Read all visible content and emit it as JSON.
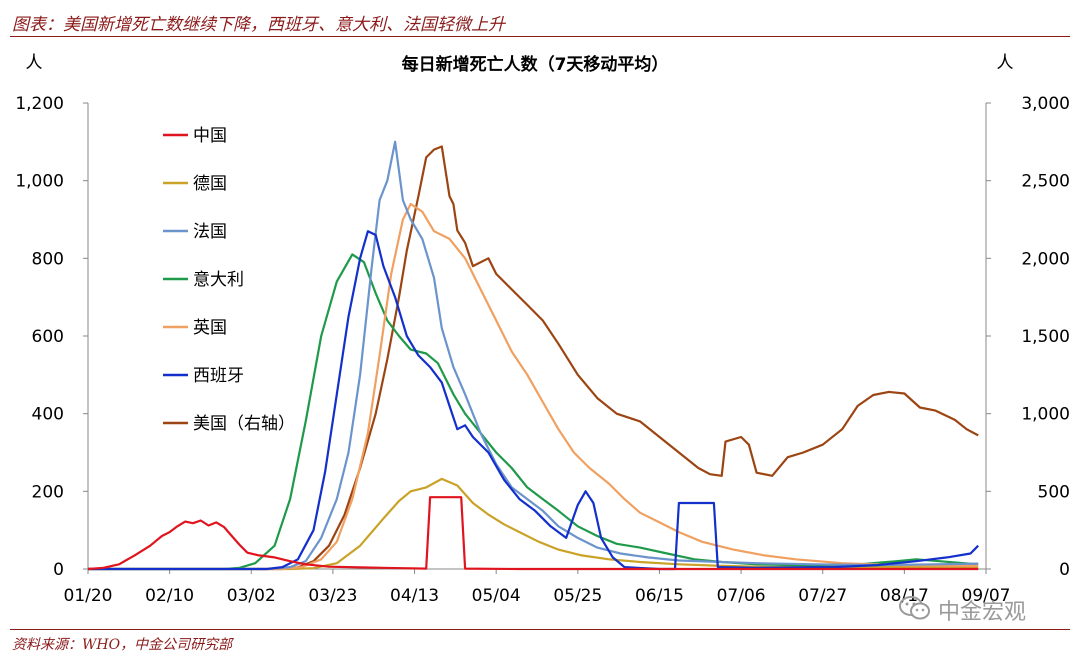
{
  "header": {
    "title": "图表：美国新增死亡数继续下降，西班牙、意大利、法国轻微上升"
  },
  "footer": {
    "source": "资料来源：WHO，中金公司研究部"
  },
  "watermark": {
    "text": "中金宏观",
    "icon": "wechat-icon"
  },
  "chart_data": {
    "type": "line",
    "title": "每日新增死亡人数（7天移动平均）",
    "ylabel_left": "人",
    "ylabel_right": "人",
    "ylim_left": [
      0,
      1200
    ],
    "ylim_right": [
      0,
      3000
    ],
    "yticks_left": [
      "0",
      "200",
      "400",
      "600",
      "800",
      "1,000",
      "1,200"
    ],
    "yticks_right": [
      "0",
      "500",
      "1,000",
      "1,500",
      "2,000",
      "2,500",
      "3,000"
    ],
    "x_start": "2020-01-20",
    "x_end": "2020-09-07",
    "xtick_labels": [
      "01/20",
      "02/10",
      "03/02",
      "03/23",
      "04/13",
      "05/04",
      "05/25",
      "06/15",
      "07/06",
      "07/27",
      "08/17",
      "09/07"
    ],
    "grid": false,
    "legend_position": "upper-left",
    "series": [
      {
        "name": "中国",
        "axis": "left",
        "color": "#e0141e",
        "points": [
          [
            "2020-01-20",
            0
          ],
          [
            "2020-01-24",
            3
          ],
          [
            "2020-01-28",
            12
          ],
          [
            "2020-02-01",
            35
          ],
          [
            "2020-02-05",
            60
          ],
          [
            "2020-02-08",
            85
          ],
          [
            "2020-02-10",
            95
          ],
          [
            "2020-02-12",
            110
          ],
          [
            "2020-02-14",
            122
          ],
          [
            "2020-02-16",
            118
          ],
          [
            "2020-02-18",
            125
          ],
          [
            "2020-02-20",
            112
          ],
          [
            "2020-02-22",
            120
          ],
          [
            "2020-02-24",
            108
          ],
          [
            "2020-02-26",
            85
          ],
          [
            "2020-02-28",
            62
          ],
          [
            "2020-03-01",
            42
          ],
          [
            "2020-03-04",
            35
          ],
          [
            "2020-03-08",
            30
          ],
          [
            "2020-03-12",
            20
          ],
          [
            "2020-03-16",
            12
          ],
          [
            "2020-03-22",
            6
          ],
          [
            "2020-03-30",
            4
          ],
          [
            "2020-04-10",
            2
          ],
          [
            "2020-04-16",
            1
          ],
          [
            "2020-04-17",
            185
          ],
          [
            "2020-04-25",
            185
          ],
          [
            "2020-04-26",
            1
          ],
          [
            "2020-05-10",
            0
          ],
          [
            "2020-09-05",
            0
          ]
        ]
      },
      {
        "name": "德国",
        "axis": "left",
        "color": "#c9a227",
        "points": [
          [
            "2020-01-20",
            0
          ],
          [
            "2020-03-12",
            0
          ],
          [
            "2020-03-18",
            2
          ],
          [
            "2020-03-24",
            15
          ],
          [
            "2020-03-30",
            60
          ],
          [
            "2020-04-05",
            130
          ],
          [
            "2020-04-09",
            175
          ],
          [
            "2020-04-12",
            200
          ],
          [
            "2020-04-16",
            210
          ],
          [
            "2020-04-20",
            232
          ],
          [
            "2020-04-24",
            215
          ],
          [
            "2020-04-28",
            170
          ],
          [
            "2020-05-02",
            140
          ],
          [
            "2020-05-06",
            115
          ],
          [
            "2020-05-10",
            95
          ],
          [
            "2020-05-15",
            70
          ],
          [
            "2020-05-20",
            50
          ],
          [
            "2020-05-26",
            35
          ],
          [
            "2020-06-02",
            25
          ],
          [
            "2020-06-10",
            18
          ],
          [
            "2020-06-20",
            12
          ],
          [
            "2020-07-01",
            8
          ],
          [
            "2020-07-15",
            5
          ],
          [
            "2020-08-01",
            5
          ],
          [
            "2020-08-15",
            5
          ],
          [
            "2020-09-05",
            4
          ]
        ]
      },
      {
        "name": "法国",
        "axis": "left",
        "color": "#6b93cc",
        "points": [
          [
            "2020-01-20",
            0
          ],
          [
            "2020-03-06",
            0
          ],
          [
            "2020-03-12",
            5
          ],
          [
            "2020-03-16",
            20
          ],
          [
            "2020-03-20",
            80
          ],
          [
            "2020-03-24",
            180
          ],
          [
            "2020-03-27",
            300
          ],
          [
            "2020-03-30",
            500
          ],
          [
            "2020-04-02",
            780
          ],
          [
            "2020-04-04",
            950
          ],
          [
            "2020-04-06",
            1000
          ],
          [
            "2020-04-08",
            1100
          ],
          [
            "2020-04-10",
            950
          ],
          [
            "2020-04-12",
            900
          ],
          [
            "2020-04-15",
            850
          ],
          [
            "2020-04-18",
            750
          ],
          [
            "2020-04-20",
            620
          ],
          [
            "2020-04-23",
            520
          ],
          [
            "2020-04-26",
            450
          ],
          [
            "2020-04-30",
            350
          ],
          [
            "2020-05-04",
            270
          ],
          [
            "2020-05-08",
            210
          ],
          [
            "2020-05-12",
            180
          ],
          [
            "2020-05-16",
            150
          ],
          [
            "2020-05-20",
            110
          ],
          [
            "2020-05-25",
            80
          ],
          [
            "2020-05-30",
            55
          ],
          [
            "2020-06-05",
            40
          ],
          [
            "2020-06-12",
            30
          ],
          [
            "2020-06-20",
            22
          ],
          [
            "2020-07-01",
            18
          ],
          [
            "2020-07-10",
            15
          ],
          [
            "2020-07-25",
            12
          ],
          [
            "2020-08-10",
            10
          ],
          [
            "2020-08-25",
            12
          ],
          [
            "2020-09-05",
            14
          ]
        ]
      },
      {
        "name": "意大利",
        "axis": "left",
        "color": "#1f9a4a",
        "points": [
          [
            "2020-01-20",
            0
          ],
          [
            "2020-02-24",
            0
          ],
          [
            "2020-02-28",
            3
          ],
          [
            "2020-03-03",
            15
          ],
          [
            "2020-03-08",
            60
          ],
          [
            "2020-03-12",
            180
          ],
          [
            "2020-03-16",
            380
          ],
          [
            "2020-03-20",
            600
          ],
          [
            "2020-03-24",
            740
          ],
          [
            "2020-03-28",
            810
          ],
          [
            "2020-03-31",
            790
          ],
          [
            "2020-04-03",
            710
          ],
          [
            "2020-04-06",
            640
          ],
          [
            "2020-04-09",
            600
          ],
          [
            "2020-04-12",
            565
          ],
          [
            "2020-04-16",
            555
          ],
          [
            "2020-04-19",
            530
          ],
          [
            "2020-04-23",
            450
          ],
          [
            "2020-04-26",
            400
          ],
          [
            "2020-04-30",
            350
          ],
          [
            "2020-05-04",
            300
          ],
          [
            "2020-05-08",
            260
          ],
          [
            "2020-05-12",
            210
          ],
          [
            "2020-05-16",
            180
          ],
          [
            "2020-05-20",
            150
          ],
          [
            "2020-05-25",
            110
          ],
          [
            "2020-05-30",
            85
          ],
          [
            "2020-06-04",
            65
          ],
          [
            "2020-06-10",
            55
          ],
          [
            "2020-06-17",
            40
          ],
          [
            "2020-06-24",
            25
          ],
          [
            "2020-07-01",
            18
          ],
          [
            "2020-07-10",
            12
          ],
          [
            "2020-07-20",
            10
          ],
          [
            "2020-08-01",
            8
          ],
          [
            "2020-08-15",
            20
          ],
          [
            "2020-08-20",
            25
          ],
          [
            "2020-09-05",
            12
          ]
        ]
      },
      {
        "name": "英国",
        "axis": "left",
        "color": "#f0a060",
        "points": [
          [
            "2020-01-20",
            0
          ],
          [
            "2020-03-10",
            0
          ],
          [
            "2020-03-15",
            5
          ],
          [
            "2020-03-20",
            25
          ],
          [
            "2020-03-24",
            70
          ],
          [
            "2020-03-28",
            180
          ],
          [
            "2020-04-01",
            350
          ],
          [
            "2020-04-04",
            550
          ],
          [
            "2020-04-07",
            760
          ],
          [
            "2020-04-10",
            900
          ],
          [
            "2020-04-12",
            940
          ],
          [
            "2020-04-15",
            920
          ],
          [
            "2020-04-18",
            870
          ],
          [
            "2020-04-22",
            850
          ],
          [
            "2020-04-26",
            800
          ],
          [
            "2020-04-30",
            720
          ],
          [
            "2020-05-04",
            640
          ],
          [
            "2020-05-08",
            560
          ],
          [
            "2020-05-12",
            500
          ],
          [
            "2020-05-16",
            430
          ],
          [
            "2020-05-20",
            360
          ],
          [
            "2020-05-24",
            300
          ],
          [
            "2020-05-28",
            260
          ],
          [
            "2020-06-02",
            220
          ],
          [
            "2020-06-06",
            180
          ],
          [
            "2020-06-10",
            145
          ],
          [
            "2020-06-15",
            120
          ],
          [
            "2020-06-20",
            95
          ],
          [
            "2020-06-26",
            70
          ],
          [
            "2020-07-04",
            50
          ],
          [
            "2020-07-12",
            35
          ],
          [
            "2020-07-20",
            25
          ],
          [
            "2020-08-01",
            15
          ],
          [
            "2020-08-15",
            10
          ],
          [
            "2020-09-05",
            8
          ]
        ]
      },
      {
        "name": "西班牙",
        "axis": "left",
        "color": "#1330cc",
        "points": [
          [
            "2020-01-20",
            0
          ],
          [
            "2020-03-06",
            0
          ],
          [
            "2020-03-10",
            5
          ],
          [
            "2020-03-14",
            25
          ],
          [
            "2020-03-18",
            100
          ],
          [
            "2020-03-21",
            250
          ],
          [
            "2020-03-24",
            450
          ],
          [
            "2020-03-27",
            650
          ],
          [
            "2020-03-30",
            800
          ],
          [
            "2020-04-01",
            870
          ],
          [
            "2020-04-03",
            860
          ],
          [
            "2020-04-05",
            780
          ],
          [
            "2020-04-08",
            700
          ],
          [
            "2020-04-11",
            600
          ],
          [
            "2020-04-14",
            550
          ],
          [
            "2020-04-17",
            520
          ],
          [
            "2020-04-20",
            480
          ],
          [
            "2020-04-22",
            420
          ],
          [
            "2020-04-24",
            360
          ],
          [
            "2020-04-26",
            370
          ],
          [
            "2020-04-28",
            340
          ],
          [
            "2020-05-02",
            300
          ],
          [
            "2020-05-06",
            230
          ],
          [
            "2020-05-10",
            180
          ],
          [
            "2020-05-14",
            150
          ],
          [
            "2020-05-18",
            110
          ],
          [
            "2020-05-22",
            80
          ],
          [
            "2020-05-25",
            165
          ],
          [
            "2020-05-27",
            200
          ],
          [
            "2020-05-29",
            170
          ],
          [
            "2020-05-31",
            80
          ],
          [
            "2020-06-03",
            30
          ],
          [
            "2020-06-06",
            5
          ],
          [
            "2020-06-15",
            0
          ],
          [
            "2020-06-19",
            0
          ],
          [
            "2020-06-20",
            170
          ],
          [
            "2020-06-29",
            170
          ],
          [
            "2020-06-30",
            5
          ],
          [
            "2020-07-10",
            3
          ],
          [
            "2020-07-30",
            5
          ],
          [
            "2020-08-10",
            10
          ],
          [
            "2020-08-20",
            20
          ],
          [
            "2020-08-28",
            30
          ],
          [
            "2020-09-03",
            40
          ],
          [
            "2020-09-05",
            60
          ]
        ]
      },
      {
        "name": "美国（右轴）",
        "axis": "right",
        "color": "#9c4512",
        "points": [
          [
            "2020-01-20",
            0
          ],
          [
            "2020-03-10",
            0
          ],
          [
            "2020-03-14",
            10
          ],
          [
            "2020-03-18",
            50
          ],
          [
            "2020-03-22",
            150
          ],
          [
            "2020-03-26",
            350
          ],
          [
            "2020-03-30",
            650
          ],
          [
            "2020-04-03",
            1000
          ],
          [
            "2020-04-06",
            1350
          ],
          [
            "2020-04-09",
            1750
          ],
          [
            "2020-04-11",
            2050
          ],
          [
            "2020-04-14",
            2400
          ],
          [
            "2020-04-16",
            2650
          ],
          [
            "2020-04-18",
            2700
          ],
          [
            "2020-04-20",
            2720
          ],
          [
            "2020-04-22",
            2400
          ],
          [
            "2020-04-23",
            2350
          ],
          [
            "2020-04-24",
            2180
          ],
          [
            "2020-04-26",
            2100
          ],
          [
            "2020-04-28",
            1950
          ],
          [
            "2020-05-02",
            2000
          ],
          [
            "2020-05-04",
            1900
          ],
          [
            "2020-05-08",
            1800
          ],
          [
            "2020-05-12",
            1700
          ],
          [
            "2020-05-16",
            1600
          ],
          [
            "2020-05-20",
            1450
          ],
          [
            "2020-05-25",
            1250
          ],
          [
            "2020-05-30",
            1100
          ],
          [
            "2020-06-04",
            1000
          ],
          [
            "2020-06-10",
            950
          ],
          [
            "2020-06-15",
            850
          ],
          [
            "2020-06-20",
            750
          ],
          [
            "2020-06-25",
            650
          ],
          [
            "2020-06-28",
            610
          ],
          [
            "2020-07-01",
            600
          ],
          [
            "2020-07-02",
            820
          ],
          [
            "2020-07-06",
            850
          ],
          [
            "2020-07-08",
            800
          ],
          [
            "2020-07-10",
            620
          ],
          [
            "2020-07-14",
            600
          ],
          [
            "2020-07-18",
            720
          ],
          [
            "2020-07-22",
            750
          ],
          [
            "2020-07-27",
            800
          ],
          [
            "2020-08-01",
            900
          ],
          [
            "2020-08-05",
            1050
          ],
          [
            "2020-08-09",
            1120
          ],
          [
            "2020-08-13",
            1140
          ],
          [
            "2020-08-17",
            1130
          ],
          [
            "2020-08-21",
            1040
          ],
          [
            "2020-08-25",
            1020
          ],
          [
            "2020-08-30",
            960
          ],
          [
            "2020-09-02",
            900
          ],
          [
            "2020-09-05",
            860
          ]
        ]
      }
    ]
  }
}
